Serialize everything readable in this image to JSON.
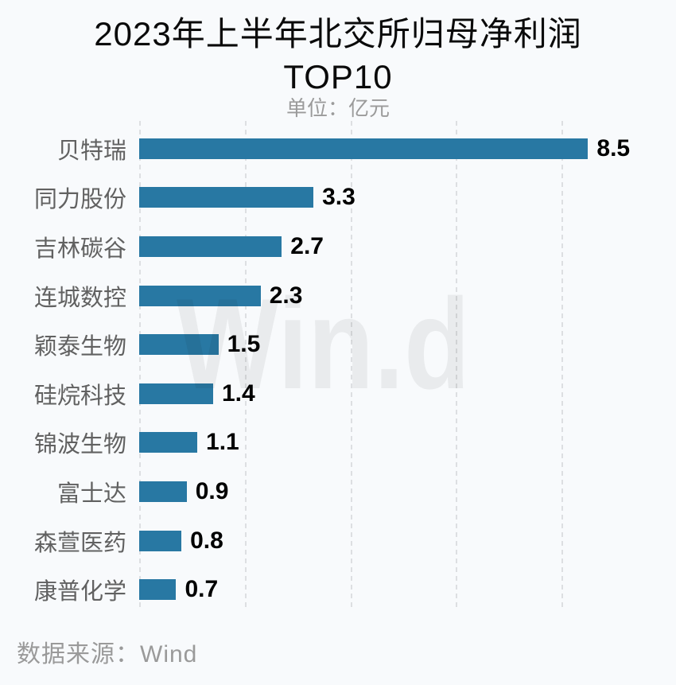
{
  "title": {
    "line1": "2023年上半年北交所归母净利润",
    "line2": "TOP10",
    "subtitle": "单位：亿元"
  },
  "watermark": "Win.d",
  "footer": {
    "source": "数据来源：Wind"
  },
  "colors": {
    "bar": "#2878a3",
    "background": "#f8fafc",
    "category_label": "#616161",
    "value_label": "#000000",
    "subtitle": "#9b9b9b",
    "footer": "#9a9a9a",
    "gridline": "#dddfe2"
  },
  "chart_data": {
    "type": "bar",
    "orientation": "horizontal",
    "title": "2023年上半年北交所归母净利润TOP10",
    "subtitle": "单位：亿元",
    "unit": "亿元",
    "categories": [
      "贝特瑞",
      "同力股份",
      "吉林碳谷",
      "连城数控",
      "颖泰生物",
      "硅烷科技",
      "锦波生物",
      "富士达",
      "森萱医药",
      "康普化学"
    ],
    "values": [
      8.5,
      3.3,
      2.7,
      2.3,
      1.5,
      1.4,
      1.1,
      0.9,
      0.8,
      0.7
    ],
    "value_decimals": 1,
    "xlim": [
      0,
      10
    ],
    "gridline_values": [
      0,
      2,
      4,
      6,
      8
    ],
    "grid": "vertical-dashed",
    "legend": "none",
    "value_labels_shown": true,
    "source": "Wind"
  }
}
